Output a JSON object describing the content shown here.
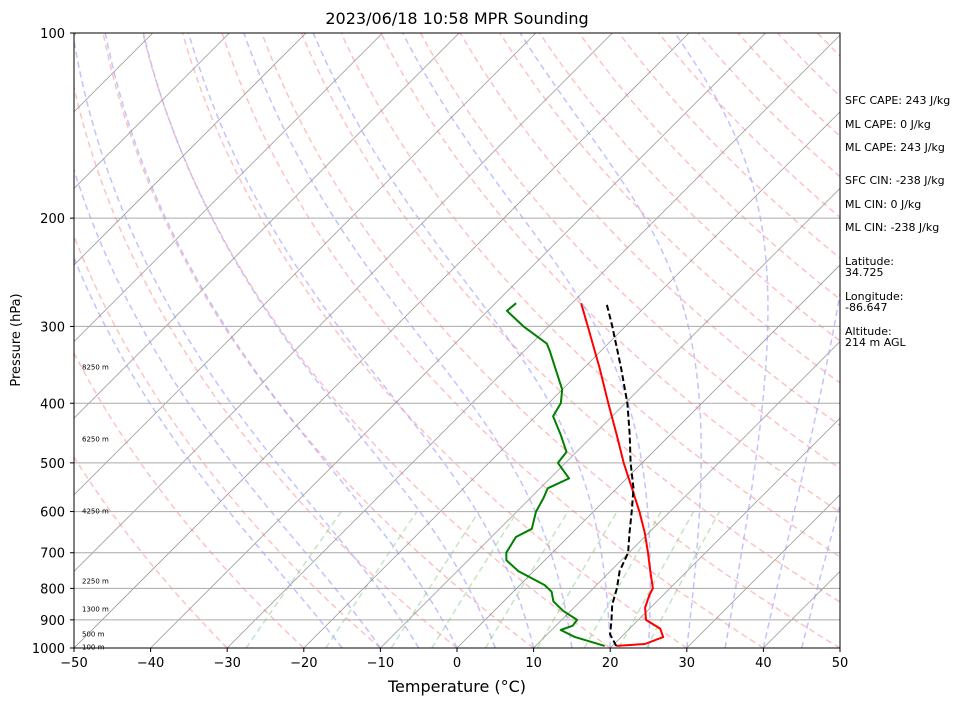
{
  "chart_data": {
    "type": "line",
    "title": "2023/06/18 10:58 MPR Sounding",
    "xlabel": "Temperature (°C)",
    "ylabel": "Pressure (hPa)",
    "xlim": [
      -50,
      50
    ],
    "ylim": [
      1000,
      100
    ],
    "y_scale": "log",
    "x_ticks": [
      -50,
      -40,
      -30,
      -20,
      -10,
      0,
      10,
      20,
      30,
      40,
      50
    ],
    "x_tick_labels": [
      "−50",
      "−40",
      "−30",
      "−20",
      "−10",
      "0",
      "10",
      "20",
      "30",
      "40",
      "50"
    ],
    "y_ticks": [
      100,
      200,
      300,
      400,
      500,
      600,
      700,
      800,
      900,
      1000
    ],
    "y_tick_labels": [
      "100",
      "200",
      "300",
      "400",
      "500",
      "600",
      "700",
      "800",
      "900",
      "1000"
    ],
    "height_labels": [
      {
        "text": "8250 m",
        "p": 350
      },
      {
        "text": "6250 m",
        "p": 458
      },
      {
        "text": "4250 m",
        "p": 600
      },
      {
        "text": "2250 m",
        "p": 780
      },
      {
        "text": "1300 m",
        "p": 865
      },
      {
        "text": "500 m",
        "p": 950
      },
      {
        "text": "100 m",
        "p": 998
      }
    ],
    "series": [
      {
        "color": "#ff0000",
        "kind": "temperature",
        "points": [
          {
            "p": 992,
            "t": 20.5
          },
          {
            "p": 985,
            "t": 24.0
          },
          {
            "p": 960,
            "t": 25.5
          },
          {
            "p": 930,
            "t": 24.0
          },
          {
            "p": 900,
            "t": 21.0
          },
          {
            "p": 860,
            "t": 19.3
          },
          {
            "p": 820,
            "t": 18.2
          },
          {
            "p": 800,
            "t": 17.8
          },
          {
            "p": 750,
            "t": 15.2
          },
          {
            "p": 700,
            "t": 12.5
          },
          {
            "p": 650,
            "t": 9.5
          },
          {
            "p": 600,
            "t": 6.0
          },
          {
            "p": 550,
            "t": 2.0
          },
          {
            "p": 500,
            "t": -2.4
          },
          {
            "p": 450,
            "t": -7.0
          },
          {
            "p": 400,
            "t": -12.2
          },
          {
            "p": 350,
            "t": -18.0
          },
          {
            "p": 300,
            "t": -24.9
          },
          {
            "p": 280,
            "t": -28.0
          },
          {
            "p": 275,
            "t": -28.8
          }
        ]
      },
      {
        "color": "#008000",
        "kind": "dewpoint",
        "points": [
          {
            "p": 992,
            "t": 19.0
          },
          {
            "p": 960,
            "t": 14.0
          },
          {
            "p": 935,
            "t": 11.2
          },
          {
            "p": 920,
            "t": 12.2
          },
          {
            "p": 900,
            "t": 12.0
          },
          {
            "p": 870,
            "t": 9.0
          },
          {
            "p": 840,
            "t": 6.5
          },
          {
            "p": 810,
            "t": 5.0
          },
          {
            "p": 790,
            "t": 3.2
          },
          {
            "p": 750,
            "t": -2.0
          },
          {
            "p": 720,
            "t": -5.0
          },
          {
            "p": 700,
            "t": -6.0
          },
          {
            "p": 660,
            "t": -6.8
          },
          {
            "p": 640,
            "t": -5.8
          },
          {
            "p": 600,
            "t": -7.5
          },
          {
            "p": 570,
            "t": -8.3
          },
          {
            "p": 550,
            "t": -9.0
          },
          {
            "p": 530,
            "t": -7.5
          },
          {
            "p": 500,
            "t": -11.0
          },
          {
            "p": 480,
            "t": -11.3
          },
          {
            "p": 450,
            "t": -14.3
          },
          {
            "p": 420,
            "t": -17.7
          },
          {
            "p": 400,
            "t": -18.4
          },
          {
            "p": 380,
            "t": -20.0
          },
          {
            "p": 350,
            "t": -23.8
          },
          {
            "p": 330,
            "t": -26.5
          },
          {
            "p": 320,
            "t": -28.0
          },
          {
            "p": 300,
            "t": -33.3
          },
          {
            "p": 283,
            "t": -37.5
          },
          {
            "p": 275,
            "t": -37.3
          }
        ]
      },
      {
        "color": "#000000",
        "kind": "parcel",
        "dashed": true,
        "points": [
          {
            "p": 992,
            "t": 20.5
          },
          {
            "p": 950,
            "t": 18.2
          },
          {
            "p": 900,
            "t": 16.5
          },
          {
            "p": 850,
            "t": 14.6
          },
          {
            "p": 800,
            "t": 13.1
          },
          {
            "p": 750,
            "t": 11.2
          },
          {
            "p": 700,
            "t": 9.9
          },
          {
            "p": 650,
            "t": 7.5
          },
          {
            "p": 600,
            "t": 5.0
          },
          {
            "p": 550,
            "t": 2.2
          },
          {
            "p": 500,
            "t": -1.5
          },
          {
            "p": 450,
            "t": -5.3
          },
          {
            "p": 400,
            "t": -9.7
          },
          {
            "p": 350,
            "t": -15.2
          },
          {
            "p": 300,
            "t": -21.7
          },
          {
            "p": 275,
            "t": -25.5
          }
        ]
      }
    ]
  },
  "annotations": {
    "sfc_cape": "SFC CAPE: 243 J/kg",
    "ml_cape_1": "ML CAPE: 0 J/kg",
    "ml_cape_2": "ML CAPE: 243 J/kg",
    "sfc_cin": "SFC CIN: -238 J/kg",
    "ml_cin_1": "ML CIN: 0 J/kg",
    "ml_cin_2": "ML CIN: -238 J/kg",
    "latitude": "Latitude:\n34.725",
    "longitude": "Longitude:\n-86.647",
    "altitude": "Altitude:\n214 m AGL"
  },
  "colors": {
    "dry_adiabats": "#ff9999",
    "moist_adiabats": "#9999ff",
    "mixing_ratio": "#88cc88",
    "isotherms": "#999999"
  }
}
